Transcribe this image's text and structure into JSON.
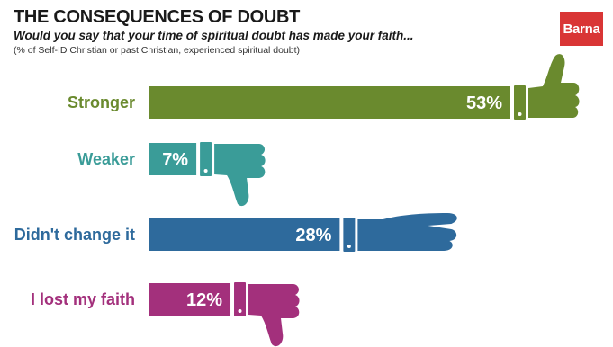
{
  "header": {
    "title": "THE CONSEQUENCES OF DOUBT",
    "subtitle": "Would you say that your time of spiritual doubt has made your faith...",
    "note": "(% of Self-ID Christian or past Christian, experienced spiritual doubt)",
    "brand": "Barna"
  },
  "colors": {
    "stronger": "#6a8a2e",
    "weaker": "#3a9c98",
    "no_change": "#2e6a9c",
    "lost": "#a3307c",
    "brand": "#d93535"
  },
  "chart_data": {
    "type": "bar",
    "orientation": "horizontal",
    "categories": [
      "Stronger",
      "Weaker",
      "Didn't change it",
      "I lost my faith"
    ],
    "values": [
      53,
      7,
      28,
      12
    ],
    "value_labels": [
      "53%",
      "7%",
      "28%",
      "12%"
    ],
    "icons": [
      "thumbs-up-icon",
      "thumbs-down-icon",
      "flat-hand-icon",
      "thumbs-down-icon"
    ],
    "bar_colors": [
      "#6a8a2e",
      "#3a9c98",
      "#2e6a9c",
      "#a3307c"
    ],
    "xlim": [
      0,
      53
    ],
    "grid": false,
    "legend": "none"
  }
}
